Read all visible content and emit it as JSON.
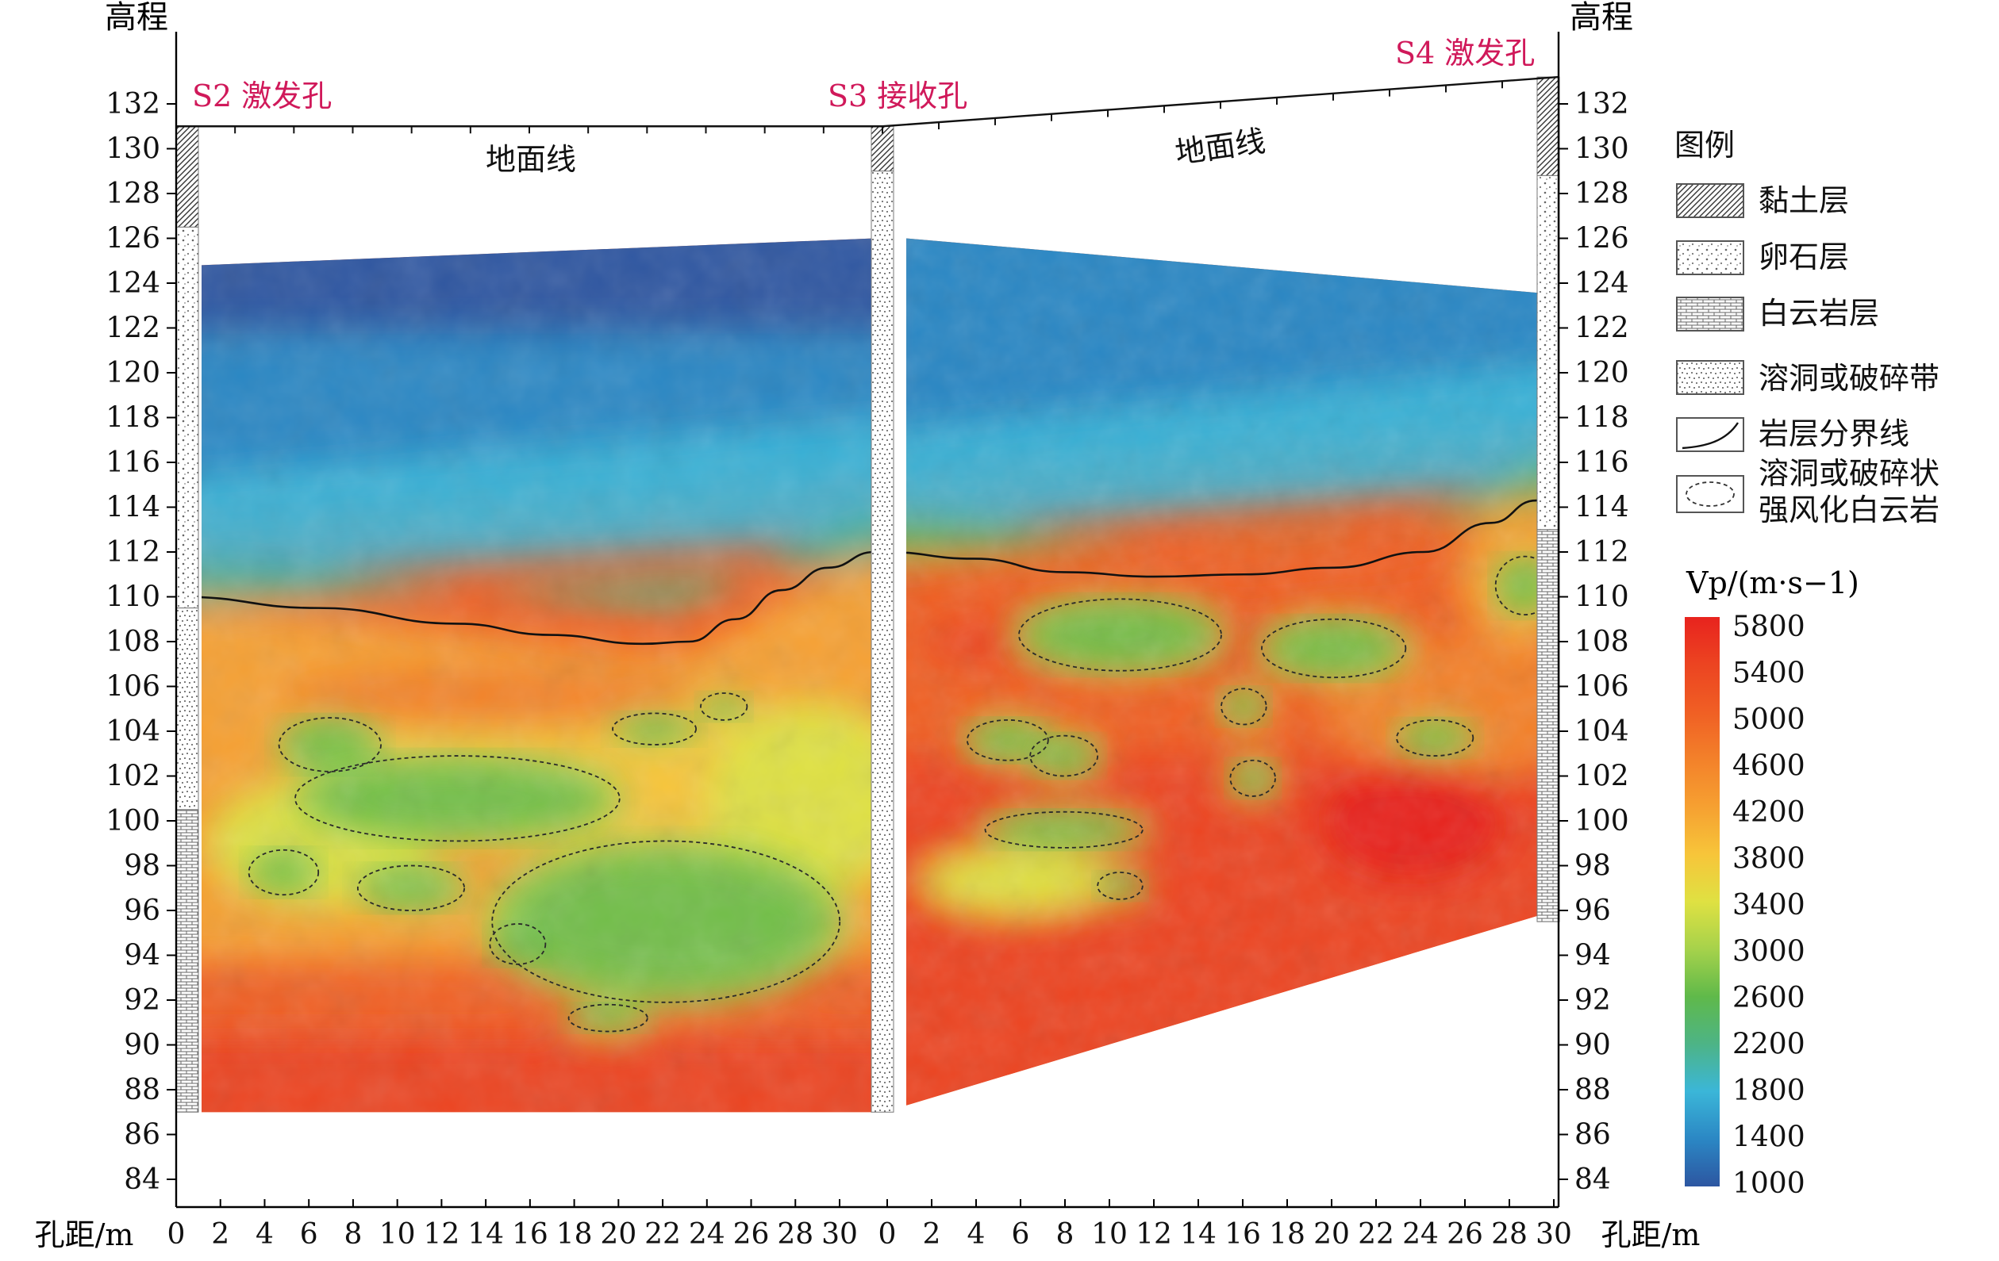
{
  "chart_data": {
    "type": "heatmap",
    "y_axis_label": "高程",
    "x_axis_label": "孔距/m",
    "y_range": [
      84,
      132
    ],
    "y_ticks": [
      132,
      130,
      128,
      126,
      124,
      122,
      120,
      118,
      116,
      114,
      112,
      110,
      108,
      106,
      104,
      102,
      100,
      98,
      96,
      94,
      92,
      90,
      88,
      86,
      84
    ],
    "panels": [
      {
        "id": "S2-S3",
        "x_range": [
          0,
          30
        ],
        "x_ticks": [
          0,
          2,
          4,
          6,
          8,
          10,
          12,
          14,
          16,
          18,
          20,
          22,
          24,
          26,
          28,
          30
        ],
        "left_hole": "S2 激发孔",
        "right_hole": "S3 接收孔",
        "ground_label": "地面线",
        "ground_elevation": [
          131,
          131
        ],
        "section_top": [
          124.8,
          126
        ],
        "section_bottom": [
          87,
          87
        ],
        "boundary": [
          [
            0,
            110
          ],
          [
            6,
            109.5
          ],
          [
            12,
            108.8
          ],
          [
            16,
            108.3
          ],
          [
            20,
            107.9
          ],
          [
            22,
            108
          ],
          [
            24,
            109
          ],
          [
            26,
            110.3
          ],
          [
            28,
            111.3
          ],
          [
            30,
            112
          ]
        ],
        "low_velocity_zones": [
          {
            "center": [
              6.5,
              103.4
            ],
            "radius": [
              2.2,
              1.2
            ]
          },
          {
            "center": [
              12,
              101
            ],
            "radius": [
              7,
              1.9
            ]
          },
          {
            "center": [
              4.5,
              97.7
            ],
            "radius": [
              1.5,
              1.0
            ]
          },
          {
            "center": [
              10,
              97
            ],
            "radius": [
              2.3,
              1.0
            ]
          },
          {
            "center": [
              14.6,
              94.5
            ],
            "radius": [
              1.2,
              0.9
            ]
          },
          {
            "center": [
              21,
              95.5
            ],
            "radius": [
              7.5,
              3.6
            ]
          },
          {
            "center": [
              18.5,
              91.2
            ],
            "radius": [
              1.7,
              0.6
            ]
          },
          {
            "center": [
              20.5,
              104.1
            ],
            "radius": [
              1.8,
              0.7
            ]
          },
          {
            "center": [
              23.5,
              105.1
            ],
            "radius": [
              1.0,
              0.6
            ]
          }
        ]
      },
      {
        "id": "S3-S4",
        "x_range": [
          0,
          30
        ],
        "x_ticks": [
          0,
          2,
          4,
          6,
          8,
          10,
          12,
          14,
          16,
          18,
          20,
          22,
          24,
          26,
          28,
          30
        ],
        "left_hole": "S3 接收孔",
        "right_hole": "S4 激发孔",
        "ground_label": "地面线",
        "ground_elevation": [
          131,
          133.2
        ],
        "section_top": [
          126,
          123.5
        ],
        "section_bottom": [
          87.3,
          96
        ],
        "boundary": [
          [
            0,
            112
          ],
          [
            4,
            111.7
          ],
          [
            8,
            111.1
          ],
          [
            12,
            110.9
          ],
          [
            16,
            111
          ],
          [
            20,
            111.3
          ],
          [
            24,
            112
          ],
          [
            27,
            113.3
          ],
          [
            29,
            114.3
          ],
          [
            30,
            114.5
          ]
        ],
        "low_velocity_zones": [
          {
            "center": [
              10.5,
              108.3
            ],
            "radius": [
              4.5,
              1.6
            ]
          },
          {
            "center": [
              20,
              107.7
            ],
            "radius": [
              3.2,
              1.3
            ]
          },
          {
            "center": [
              16,
              105.1
            ],
            "radius": [
              1.0,
              0.8
            ]
          },
          {
            "center": [
              5.5,
              103.6
            ],
            "radius": [
              1.8,
              0.9
            ]
          },
          {
            "center": [
              8,
              102.9
            ],
            "radius": [
              1.5,
              0.9
            ]
          },
          {
            "center": [
              24.5,
              103.7
            ],
            "radius": [
              1.7,
              0.8
            ]
          },
          {
            "center": [
              16.4,
              101.9
            ],
            "radius": [
              1.0,
              0.8
            ]
          },
          {
            "center": [
              8,
              99.6
            ],
            "radius": [
              3.5,
              0.8
            ]
          },
          {
            "center": [
              10.5,
              97.1
            ],
            "radius": [
              1.0,
              0.6
            ]
          },
          {
            "center": [
              28.5,
              110.5
            ],
            "radius": [
              1.3,
              1.3
            ]
          }
        ]
      }
    ],
    "colorbar": {
      "label": "Vp/(m·s−1)",
      "values": [
        5800,
        5400,
        5000,
        4600,
        4200,
        3800,
        3400,
        3000,
        2600,
        2200,
        1800,
        1400,
        1000
      ],
      "colors": [
        "#e8231e",
        "#ec4421",
        "#f05f24",
        "#f3812a",
        "#f6a031",
        "#f7c53a",
        "#dfe142",
        "#a6d24b",
        "#5fb94a",
        "#4db486",
        "#3bb6d8",
        "#2b87c4",
        "#2d56a1"
      ]
    },
    "legend": {
      "title": "图例",
      "items": [
        "黏土层",
        "卵石层",
        "白云岩层",
        "溶洞或破碎带",
        "岩层分界线",
        "溶洞或破碎状\n强风化白云岩"
      ]
    }
  }
}
